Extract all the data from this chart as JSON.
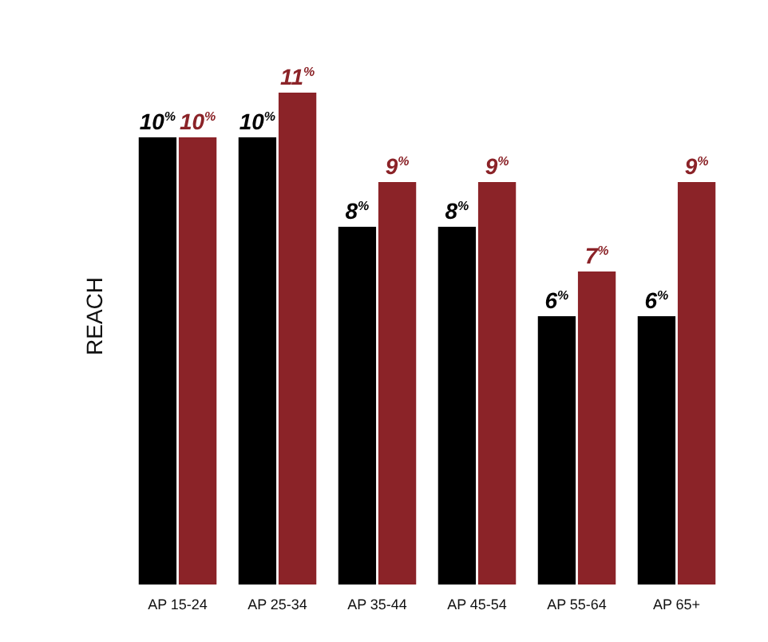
{
  "chart_data": {
    "type": "bar",
    "ylabel": "REACH",
    "categories": [
      "AP 15-24",
      "AP 25-34",
      "AP 35-44",
      "AP 45-54",
      "AP 55-64",
      "AP 65+"
    ],
    "series": [
      {
        "color": "#000000",
        "values": [
          10,
          10,
          8,
          8,
          6,
          6
        ],
        "value_labels": [
          "10%",
          "10%",
          "8%",
          "8%",
          "6%",
          "6%"
        ]
      },
      {
        "color": "#8b2328",
        "values": [
          10,
          11,
          9,
          9,
          7,
          9
        ],
        "value_labels": [
          "10%",
          "11%",
          "9%",
          "9%",
          "7%",
          "9%"
        ]
      }
    ]
  }
}
